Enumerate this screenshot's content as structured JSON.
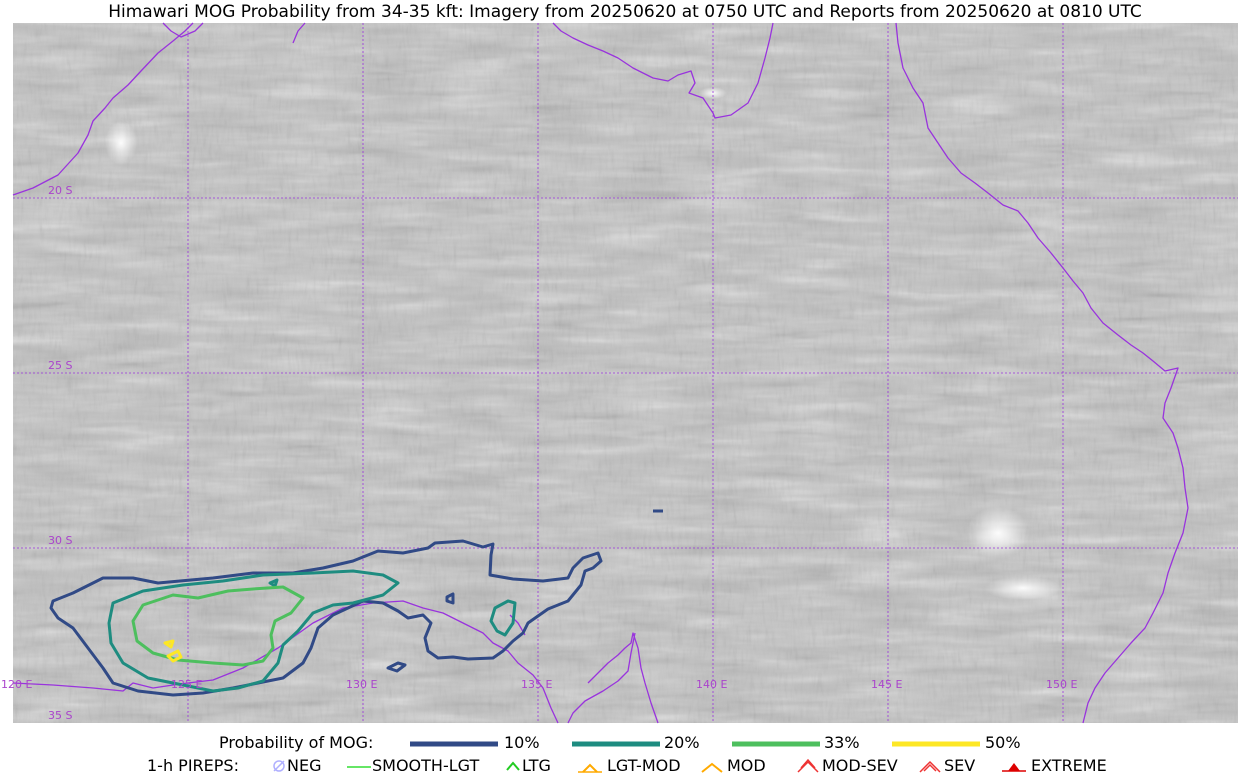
{
  "title": "Himawari MOG Probability from 34-35 kft: Imagery from 20250620 at 0750 UTC and Reports from 20250620 at 0810 UTC",
  "map": {
    "lat_labels": [
      "20 S",
      "25 S",
      "30 S",
      "35 S"
    ],
    "lon_labels": [
      "120 E",
      "125 E",
      "130 E",
      "135 E",
      "140 E",
      "145 E",
      "150 E"
    ],
    "colors": {
      "coastline": "#9933dd",
      "gridline": "#9933dd",
      "grid_label": "#aa44cc",
      "background_imagery": "#b9b9b9"
    },
    "contour_levels_percent": [
      10,
      20,
      33,
      50
    ]
  },
  "legend": {
    "probability": {
      "label": "Probability of MOG:",
      "items": [
        {
          "label": "10%",
          "color": "#314a86"
        },
        {
          "label": "20%",
          "color": "#1e8c80"
        },
        {
          "label": "33%",
          "color": "#4dbf5e"
        },
        {
          "label": "50%",
          "color": "#fde725"
        }
      ]
    },
    "pireps": {
      "label": "1-h PIREPS:",
      "items": [
        {
          "label": "NEG",
          "icon": "neg-icon",
          "color": "#b0b0ff"
        },
        {
          "label": "SMOOTH-LGT",
          "icon": "smooth-lgt-line-icon",
          "color": "#33dd33"
        },
        {
          "label": "LTG",
          "icon": "ltg-chevron-icon",
          "color": "#22cc22"
        },
        {
          "label": "LGT-MOD",
          "icon": "lgt-mod-chevron-icon",
          "color": "#ffaa00"
        },
        {
          "label": "MOD",
          "icon": "mod-chevron-icon",
          "color": "#ffaa00"
        },
        {
          "label": "MOD-SEV",
          "icon": "mod-sev-chevron-icon",
          "color": "#ee3333"
        },
        {
          "label": "SEV",
          "icon": "sev-chevron-icon",
          "color": "#ee3333"
        },
        {
          "label": "EXTREME",
          "icon": "extreme-chevron-icon",
          "color": "#dd0000"
        }
      ]
    }
  }
}
